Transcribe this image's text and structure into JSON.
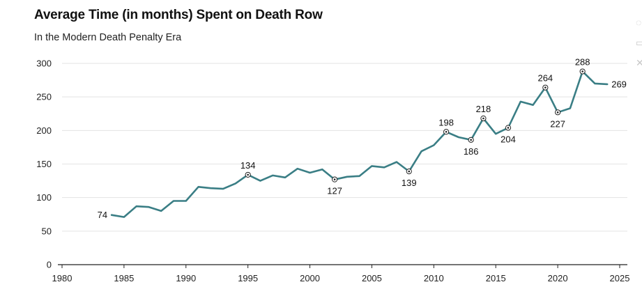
{
  "chart_data": {
    "type": "line",
    "title": "Average Time (in months) Spent on Death Row",
    "subtitle": "In the Modern Death Penalty Era",
    "xlabel": "",
    "ylabel": "",
    "xlim": [
      1980,
      2025
    ],
    "ylim": [
      0,
      300
    ],
    "x_ticks": [
      1980,
      1985,
      1990,
      1995,
      2000,
      2005,
      2010,
      2015,
      2020,
      2025
    ],
    "y_ticks": [
      0,
      50,
      100,
      150,
      200,
      250,
      300
    ],
    "grid": true,
    "line_color": "#3a7e85",
    "series": [
      {
        "name": "Average time on death row (months)",
        "x": [
          1984,
          1985,
          1986,
          1987,
          1988,
          1989,
          1990,
          1991,
          1992,
          1993,
          1994,
          1995,
          1996,
          1997,
          1998,
          1999,
          2000,
          2001,
          2002,
          2003,
          2004,
          2005,
          2006,
          2007,
          2008,
          2009,
          2010,
          2011,
          2012,
          2013,
          2014,
          2015,
          2016,
          2017,
          2018,
          2019,
          2020,
          2021,
          2022,
          2023,
          2024
        ],
        "values": [
          74,
          71,
          87,
          86,
          80,
          95,
          95,
          116,
          114,
          113,
          121,
          134,
          125,
          133,
          130,
          143,
          137,
          142,
          127,
          131,
          132,
          147,
          145,
          153,
          139,
          169,
          178,
          198,
          190,
          186,
          218,
          195,
          204,
          243,
          238,
          264,
          227,
          233,
          288,
          270,
          269
        ]
      }
    ],
    "annotations": [
      {
        "x": 1984,
        "value": 74,
        "label": "74",
        "position": "left",
        "marker": false
      },
      {
        "x": 1995,
        "value": 134,
        "label": "134",
        "position": "above",
        "marker": true
      },
      {
        "x": 2002,
        "value": 127,
        "label": "127",
        "position": "below",
        "marker": true
      },
      {
        "x": 2008,
        "value": 139,
        "label": "139",
        "position": "below",
        "marker": true
      },
      {
        "x": 2011,
        "value": 198,
        "label": "198",
        "position": "above",
        "marker": true
      },
      {
        "x": 2013,
        "value": 186,
        "label": "186",
        "position": "below",
        "marker": true
      },
      {
        "x": 2014,
        "value": 218,
        "label": "218",
        "position": "above",
        "marker": true
      },
      {
        "x": 2016,
        "value": 204,
        "label": "204",
        "position": "below",
        "marker": true
      },
      {
        "x": 2019,
        "value": 264,
        "label": "264",
        "position": "above",
        "marker": true
      },
      {
        "x": 2020,
        "value": 227,
        "label": "227",
        "position": "below",
        "marker": true
      },
      {
        "x": 2022,
        "value": 288,
        "label": "288",
        "position": "above",
        "marker": true
      },
      {
        "x": 2024,
        "value": 269,
        "label": "269",
        "position": "right",
        "marker": false
      }
    ]
  }
}
